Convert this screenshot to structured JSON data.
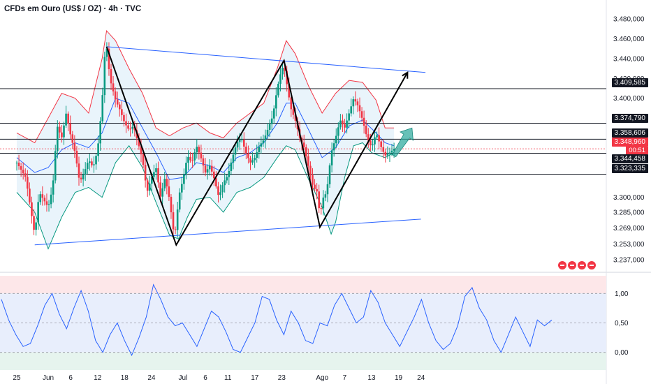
{
  "header": {
    "title": "CFDs em Ouro (US$ / OZ) · 4h · TVC"
  },
  "chart_data": [
    {
      "type": "candlestick",
      "symbol": "CFDs em Ouro (US$ / OZ)",
      "interval": "4h",
      "source": "TVC",
      "ylim": [
        3230,
        3485
      ],
      "y_ticks": [
        "3.480,000",
        "3.460,000",
        "3.440,000",
        "3.420,000",
        "3.400,000",
        "3.380,000",
        "3.300,000",
        "3.285,000",
        "3.269,000",
        "3.253,000",
        "3.237,000"
      ],
      "x_ticks": [
        "25",
        "Jun",
        "6",
        "12",
        "18",
        "24",
        "Jul",
        "6",
        "11",
        "17",
        "23",
        "Ago",
        "7",
        "13",
        "19",
        "24"
      ],
      "x_tick_values": [
        -7,
        0,
        5,
        11,
        17,
        23,
        30,
        35,
        40,
        46,
        52,
        61,
        66,
        72,
        78,
        83
      ],
      "x_unit": "days from Jun 1",
      "price_labels": [
        {
          "text": "3.409,585",
          "value": 3409.585,
          "style": "dark"
        },
        {
          "text": "3.374,790",
          "value": 3374.79,
          "style": "dark"
        },
        {
          "text": "3.358,606",
          "value": 3358.606,
          "style": "dark"
        },
        {
          "text": "3.348,960",
          "value": 3348.96,
          "style": "red"
        },
        {
          "text": "3.344,458",
          "value": 3344.458,
          "style": "dark"
        },
        {
          "text": "3.323,335",
          "value": 3323.335,
          "style": "dark"
        }
      ],
      "countdown": "00:51",
      "horizontal_lines": [
        3409.585,
        3374.79,
        3358.606,
        3344.458,
        3323.335
      ],
      "close_path": [
        [
          -7,
          3335
        ],
        [
          -5,
          3320
        ],
        [
          -3,
          3262
        ],
        [
          -2,
          3305
        ],
        [
          0,
          3290
        ],
        [
          1,
          3310
        ],
        [
          2,
          3372
        ],
        [
          3,
          3360
        ],
        [
          4,
          3385
        ],
        [
          5,
          3362
        ],
        [
          6,
          3345
        ],
        [
          7,
          3315
        ],
        [
          8,
          3325
        ],
        [
          9,
          3338
        ],
        [
          10,
          3330
        ],
        [
          11,
          3348
        ],
        [
          12,
          3395
        ],
        [
          12.5,
          3440
        ],
        [
          13,
          3452
        ],
        [
          13.5,
          3430
        ],
        [
          14,
          3415
        ],
        [
          15,
          3398
        ],
        [
          16,
          3388
        ],
        [
          17,
          3375
        ],
        [
          18,
          3368
        ],
        [
          19,
          3372
        ],
        [
          20,
          3355
        ],
        [
          21,
          3338
        ],
        [
          22,
          3305
        ],
        [
          23,
          3320
        ],
        [
          24,
          3330
        ],
        [
          25,
          3300
        ],
        [
          26,
          3320
        ],
        [
          27,
          3298
        ],
        [
          28,
          3262
        ],
        [
          28.5,
          3270
        ],
        [
          29,
          3300
        ],
        [
          30,
          3318
        ],
        [
          31,
          3342
        ],
        [
          32,
          3335
        ],
        [
          33,
          3352
        ],
        [
          34,
          3340
        ],
        [
          35,
          3325
        ],
        [
          36,
          3332
        ],
        [
          37,
          3318
        ],
        [
          38,
          3300
        ],
        [
          39,
          3315
        ],
        [
          40,
          3322
        ],
        [
          41,
          3340
        ],
        [
          42,
          3355
        ],
        [
          43,
          3360
        ],
        [
          44,
          3345
        ],
        [
          45,
          3335
        ],
        [
          46,
          3340
        ],
        [
          47,
          3352
        ],
        [
          48,
          3358
        ],
        [
          49,
          3370
        ],
        [
          50,
          3382
        ],
        [
          51,
          3410
        ],
        [
          52,
          3430
        ],
        [
          52.5,
          3432
        ],
        [
          53,
          3418
        ],
        [
          54,
          3390
        ],
        [
          55,
          3378
        ],
        [
          56,
          3360
        ],
        [
          57,
          3350
        ],
        [
          58,
          3330
        ],
        [
          59,
          3310
        ],
        [
          60,
          3305
        ],
        [
          60.5,
          3278
        ],
        [
          61,
          3298
        ],
        [
          62,
          3305
        ],
        [
          63,
          3345
        ],
        [
          64,
          3360
        ],
        [
          65,
          3378
        ],
        [
          66,
          3370
        ],
        [
          67,
          3385
        ],
        [
          68,
          3400
        ],
        [
          69,
          3392
        ],
        [
          70,
          3378
        ],
        [
          71,
          3360
        ],
        [
          72,
          3350
        ],
        [
          73,
          3365
        ],
        [
          74,
          3352
        ],
        [
          75,
          3342
        ],
        [
          76,
          3345
        ],
        [
          77,
          3349
        ]
      ],
      "bollinger_bands": {
        "upper": [
          [
            -7,
            3365
          ],
          [
            -3,
            3355
          ],
          [
            0,
            3380
          ],
          [
            3,
            3405
          ],
          [
            6,
            3400
          ],
          [
            9,
            3385
          ],
          [
            12,
            3440
          ],
          [
            13,
            3468
          ],
          [
            15,
            3458
          ],
          [
            18,
            3430
          ],
          [
            21,
            3405
          ],
          [
            24,
            3370
          ],
          [
            27,
            3362
          ],
          [
            30,
            3370
          ],
          [
            33,
            3375
          ],
          [
            36,
            3365
          ],
          [
            39,
            3360
          ],
          [
            42,
            3375
          ],
          [
            45,
            3385
          ],
          [
            48,
            3395
          ],
          [
            51,
            3430
          ],
          [
            53,
            3458
          ],
          [
            55,
            3445
          ],
          [
            58,
            3412
          ],
          [
            61,
            3385
          ],
          [
            64,
            3405
          ],
          [
            67,
            3418
          ],
          [
            70,
            3416
          ],
          [
            73,
            3398
          ],
          [
            75,
            3370
          ],
          [
            77,
            3370
          ]
        ],
        "middle": [
          [
            -7,
            3340
          ],
          [
            -3,
            3325
          ],
          [
            0,
            3330
          ],
          [
            3,
            3348
          ],
          [
            6,
            3355
          ],
          [
            9,
            3350
          ],
          [
            12,
            3365
          ],
          [
            15,
            3400
          ],
          [
            18,
            3395
          ],
          [
            21,
            3370
          ],
          [
            24,
            3345
          ],
          [
            27,
            3318
          ],
          [
            30,
            3320
          ],
          [
            33,
            3335
          ],
          [
            36,
            3332
          ],
          [
            39,
            3325
          ],
          [
            42,
            3340
          ],
          [
            45,
            3345
          ],
          [
            48,
            3355
          ],
          [
            51,
            3375
          ],
          [
            53,
            3395
          ],
          [
            55,
            3395
          ],
          [
            58,
            3368
          ],
          [
            61,
            3340
          ],
          [
            64,
            3350
          ],
          [
            67,
            3372
          ],
          [
            70,
            3378
          ],
          [
            73,
            3365
          ],
          [
            75,
            3355
          ],
          [
            77,
            3352
          ]
        ],
        "lower": [
          [
            -7,
            3305
          ],
          [
            -3,
            3285
          ],
          [
            0,
            3248
          ],
          [
            3,
            3280
          ],
          [
            6,
            3305
          ],
          [
            9,
            3310
          ],
          [
            12,
            3300
          ],
          [
            15,
            3335
          ],
          [
            18,
            3352
          ],
          [
            21,
            3330
          ],
          [
            24,
            3295
          ],
          [
            27,
            3262
          ],
          [
            29,
            3258
          ],
          [
            31,
            3280
          ],
          [
            33,
            3298
          ],
          [
            36,
            3300
          ],
          [
            39,
            3285
          ],
          [
            42,
            3305
          ],
          [
            45,
            3310
          ],
          [
            48,
            3320
          ],
          [
            51,
            3340
          ],
          [
            53,
            3352
          ],
          [
            55,
            3348
          ],
          [
            58,
            3318
          ],
          [
            61,
            3290
          ],
          [
            63,
            3263
          ],
          [
            64,
            3275
          ],
          [
            66,
            3320
          ],
          [
            68,
            3352
          ],
          [
            70,
            3355
          ],
          [
            72,
            3345
          ],
          [
            75,
            3340
          ],
          [
            77,
            3345
          ]
        ]
      },
      "trendlines": {
        "channel_upper": {
          "from": [
            13,
            3452
          ],
          "to": [
            84,
            3426
          ]
        },
        "channel_lower": {
          "from": [
            -3,
            3252
          ],
          "to": [
            83,
            3278
          ]
        },
        "zigzag": [
          [
            13,
            3452
          ],
          [
            28.5,
            3252
          ],
          [
            52.5,
            3438
          ],
          [
            60.5,
            3270
          ],
          [
            80,
            3426
          ]
        ],
        "projection_arrow": {
          "from": [
            77,
            3342
          ],
          "to": [
            81,
            3370
          ]
        }
      }
    },
    {
      "type": "line",
      "indicator": "oscillator",
      "ylim": [
        -0.3,
        1.3
      ],
      "y_ticks": [
        "1,00",
        "0,50",
        "0,00"
      ],
      "y_tick_values": [
        1.0,
        0.5,
        0.0
      ],
      "values": [
        0.9,
        0.55,
        0.3,
        0.1,
        0.15,
        0.45,
        0.8,
        1.0,
        0.65,
        0.4,
        0.75,
        1.05,
        0.7,
        0.2,
        0.0,
        0.3,
        0.5,
        0.2,
        -0.05,
        0.25,
        0.6,
        1.15,
        0.9,
        0.6,
        0.45,
        0.5,
        0.3,
        0.1,
        0.4,
        0.7,
        0.6,
        0.35,
        0.05,
        0.0,
        0.25,
        0.5,
        0.95,
        0.9,
        0.55,
        0.3,
        0.7,
        0.5,
        0.2,
        0.15,
        0.5,
        0.45,
        0.8,
        1.0,
        0.75,
        0.5,
        0.6,
        1.05,
        0.85,
        0.5,
        0.3,
        0.1,
        0.35,
        0.6,
        0.9,
        0.5,
        0.2,
        0.05,
        0.15,
        0.45,
        0.95,
        1.1,
        0.75,
        0.55,
        0.2,
        0.0,
        0.3,
        0.6,
        0.35,
        0.1,
        0.55,
        0.45,
        0.55
      ]
    }
  ]
}
